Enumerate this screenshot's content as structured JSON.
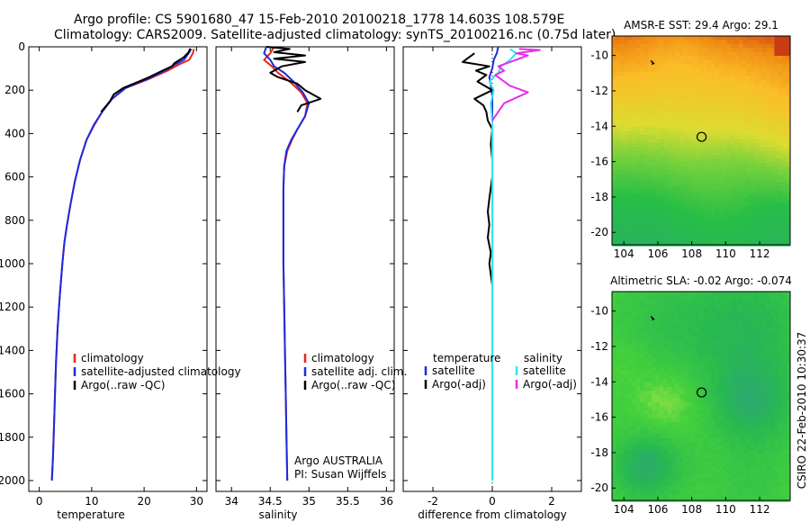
{
  "header": {
    "line1": "Argo profile: CS 5901680_47 15-Feb-2010 20100218_1778 14.603S 108.579E",
    "line2": "Climatology: CARS2009. Satellite-adjusted climatology: synTS_20100216.nc (0.75d later)"
  },
  "side_stamp": "CSIRO 22-Feb-2010 10:30:37",
  "colors": {
    "red": "#e8261c",
    "blue": "#1a2ce0",
    "black": "#000000",
    "cyan": "#2ee6f0",
    "magenta": "#e62ee6"
  },
  "chart_data": [
    {
      "type": "line",
      "name": "temperature-panel",
      "xlabel": "temperature",
      "ylabel": "",
      "xlim": [
        -2,
        32
      ],
      "ylim": [
        2050,
        0
      ],
      "y_reversed": true,
      "xticks": [
        0,
        10,
        20,
        30
      ],
      "yticks": [
        0,
        200,
        400,
        600,
        800,
        1000,
        1200,
        1400,
        1600,
        1800,
        2000
      ],
      "legend": {
        "position": "middle-right",
        "entries": [
          "climatology",
          "satellite-adjusted climatology",
          "Argo(..raw -QC)"
        ]
      },
      "series": [
        {
          "name": "climatology",
          "color": "#e8261c",
          "points": [
            [
              29.5,
              10
            ],
            [
              29.3,
              30
            ],
            [
              28.6,
              60
            ],
            [
              26.8,
              80
            ],
            [
              24.5,
              110
            ],
            [
              20.8,
              150
            ],
            [
              16.5,
              190
            ],
            [
              13.9,
              240
            ],
            [
              12.0,
              300
            ],
            [
              10.5,
              360
            ],
            [
              9.0,
              430
            ],
            [
              7.8,
              520
            ],
            [
              6.8,
              620
            ],
            [
              6.0,
              720
            ],
            [
              5.3,
              820
            ],
            [
              4.8,
              900
            ],
            [
              4.4,
              1000
            ],
            [
              3.9,
              1150
            ],
            [
              3.5,
              1300
            ],
            [
              3.2,
              1450
            ],
            [
              3.0,
              1600
            ],
            [
              2.8,
              1750
            ],
            [
              2.6,
              1900
            ],
            [
              2.4,
              2000
            ]
          ]
        },
        {
          "name": "satellite-adjusted climatology",
          "color": "#1a2ce0",
          "points": [
            [
              29.0,
              10
            ],
            [
              28.5,
              30
            ],
            [
              27.6,
              60
            ],
            [
              26.0,
              80
            ],
            [
              24.0,
              110
            ],
            [
              20.5,
              150
            ],
            [
              16.4,
              190
            ],
            [
              13.9,
              240
            ],
            [
              12.0,
              300
            ],
            [
              10.4,
              360
            ],
            [
              9.0,
              430
            ],
            [
              7.8,
              520
            ],
            [
              6.8,
              620
            ],
            [
              6.0,
              720
            ],
            [
              5.3,
              820
            ],
            [
              4.8,
              900
            ],
            [
              4.4,
              1000
            ],
            [
              3.9,
              1150
            ],
            [
              3.5,
              1300
            ],
            [
              3.2,
              1450
            ],
            [
              3.0,
              1600
            ],
            [
              2.8,
              1750
            ],
            [
              2.6,
              1900
            ],
            [
              2.4,
              2000
            ]
          ]
        },
        {
          "name": "Argo(..raw -QC)",
          "color": "#000000",
          "points": [
            [
              28.8,
              8
            ],
            [
              28.5,
              25
            ],
            [
              27.5,
              50
            ],
            [
              25.8,
              75
            ],
            [
              25.3,
              90
            ],
            [
              23.5,
              110
            ],
            [
              21.0,
              140
            ],
            [
              18.5,
              165
            ],
            [
              16.0,
              190
            ],
            [
              14.2,
              220
            ],
            [
              13.5,
              250
            ],
            [
              12.5,
              280
            ],
            [
              11.8,
              300
            ]
          ]
        }
      ]
    },
    {
      "type": "line",
      "name": "salinity-panel",
      "xlabel": "salinity",
      "ylabel": "",
      "xlim": [
        33.8,
        36.1
      ],
      "ylim": [
        2050,
        0
      ],
      "y_reversed": true,
      "xticks": [
        34,
        34.5,
        35,
        35.5,
        36
      ],
      "xticklabels": [
        "34",
        "34.5",
        "35",
        "35.5",
        "36"
      ],
      "legend": {
        "position": "middle-right",
        "entries": [
          "climatology",
          "satellite adj. clim.",
          "Argo(..raw -QC)"
        ]
      },
      "annotation": {
        "line1": "Argo AUSTRALIA",
        "line2": "PI: Susan Wijffels"
      },
      "series": [
        {
          "name": "climatology",
          "color": "#e8261c",
          "points": [
            [
              34.55,
              0
            ],
            [
              34.5,
              30
            ],
            [
              34.42,
              60
            ],
            [
              34.52,
              90
            ],
            [
              34.6,
              120
            ],
            [
              34.75,
              160
            ],
            [
              34.9,
              210
            ],
            [
              34.98,
              260
            ],
            [
              34.95,
              320
            ],
            [
              34.85,
              380
            ],
            [
              34.78,
              430
            ],
            [
              34.72,
              480
            ],
            [
              34.68,
              550
            ],
            [
              34.67,
              650
            ],
            [
              34.67,
              800
            ],
            [
              34.67,
              1000
            ],
            [
              34.68,
              1200
            ],
            [
              34.69,
              1400
            ],
            [
              34.7,
              1600
            ],
            [
              34.71,
              1800
            ],
            [
              34.72,
              2000
            ]
          ]
        },
        {
          "name": "satellite adj. clim.",
          "color": "#1a2ce0",
          "points": [
            [
              34.45,
              0
            ],
            [
              34.42,
              30
            ],
            [
              34.5,
              60
            ],
            [
              34.55,
              90
            ],
            [
              34.68,
              120
            ],
            [
              34.8,
              160
            ],
            [
              34.92,
              210
            ],
            [
              35.0,
              260
            ],
            [
              34.95,
              320
            ],
            [
              34.85,
              380
            ],
            [
              34.77,
              430
            ],
            [
              34.71,
              480
            ],
            [
              34.68,
              550
            ],
            [
              34.67,
              650
            ],
            [
              34.67,
              800
            ],
            [
              34.67,
              1000
            ],
            [
              34.68,
              1200
            ],
            [
              34.69,
              1400
            ],
            [
              34.7,
              1600
            ],
            [
              34.71,
              1800
            ],
            [
              34.72,
              2000
            ]
          ]
        },
        {
          "name": "Argo(..raw -QC)",
          "color": "#000000",
          "points": [
            [
              34.45,
              0
            ],
            [
              34.75,
              10
            ],
            [
              34.55,
              25
            ],
            [
              34.95,
              40
            ],
            [
              34.55,
              55
            ],
            [
              34.95,
              70
            ],
            [
              34.65,
              90
            ],
            [
              34.5,
              120
            ],
            [
              34.6,
              140
            ],
            [
              34.85,
              170
            ],
            [
              34.95,
              200
            ],
            [
              35.15,
              240
            ],
            [
              34.9,
              270
            ],
            [
              34.85,
              300
            ]
          ]
        }
      ]
    },
    {
      "type": "line",
      "name": "difference-panel",
      "xlabel": "difference from climatology",
      "ylabel": "",
      "xlim": [
        -3.0,
        3.0
      ],
      "ylim": [
        2050,
        0
      ],
      "y_reversed": true,
      "xticks": [
        -2,
        0,
        2
      ],
      "legend": {
        "position": "middle",
        "groups": [
          {
            "title": "temperature",
            "entries": [
              "satellite",
              "Argo(-adj)"
            ]
          },
          {
            "title": "salinity",
            "entries": [
              "satellite",
              "Argo(-adj)"
            ]
          }
        ]
      },
      "series": [
        {
          "name": "temperature satellite",
          "color": "#1a2ce0",
          "points": [
            [
              0.2,
              0
            ],
            [
              0.15,
              30
            ],
            [
              0.05,
              60
            ],
            [
              0.0,
              100
            ],
            [
              -0.1,
              140
            ],
            [
              -0.05,
              180
            ],
            [
              0.0,
              230
            ],
            [
              0.0,
              300
            ],
            [
              0.0,
              500
            ],
            [
              0.0,
              1000
            ],
            [
              0.0,
              1500
            ],
            [
              0.0,
              2000
            ]
          ]
        },
        {
          "name": "temperature Argo(-adj)",
          "color": "#000000",
          "points": [
            [
              -0.6,
              30
            ],
            [
              -1.0,
              70
            ],
            [
              -0.1,
              90
            ],
            [
              -0.55,
              110
            ],
            [
              -0.2,
              130
            ],
            [
              -0.5,
              160
            ],
            [
              0.0,
              200
            ],
            [
              -0.6,
              240
            ],
            [
              -0.3,
              270
            ],
            [
              -0.2,
              300
            ],
            [
              -0.15,
              340
            ],
            [
              0.0,
              380
            ],
            [
              -0.05,
              450
            ],
            [
              0.0,
              520
            ],
            [
              0.0,
              600
            ],
            [
              -0.1,
              700
            ],
            [
              -0.15,
              760
            ],
            [
              -0.1,
              820
            ],
            [
              -0.15,
              880
            ],
            [
              -0.05,
              950
            ],
            [
              -0.1,
              1000
            ],
            [
              0.0,
              1100
            ],
            [
              0.0,
              1500
            ],
            [
              0.0,
              2000
            ]
          ]
        },
        {
          "name": "salinity satellite",
          "color": "#2ee6f0",
          "points": [
            [
              0.6,
              10
            ],
            [
              0.8,
              30
            ],
            [
              0.6,
              60
            ],
            [
              0.3,
              90
            ],
            [
              0.2,
              120
            ],
            [
              -0.1,
              160
            ],
            [
              0.05,
              200
            ],
            [
              -0.05,
              260
            ],
            [
              0.0,
              350
            ],
            [
              0.0,
              500
            ],
            [
              0.0,
              1000
            ],
            [
              0.0,
              1500
            ],
            [
              0.0,
              2000
            ]
          ]
        },
        {
          "name": "salinity Argo(-adj)",
          "color": "#e62ee6",
          "points": [
            [
              0.9,
              10
            ],
            [
              1.6,
              15
            ],
            [
              0.8,
              30
            ],
            [
              1.2,
              40
            ],
            [
              1.0,
              50
            ],
            [
              0.6,
              70
            ],
            [
              0.2,
              90
            ],
            [
              0.4,
              110
            ],
            [
              0.1,
              130
            ],
            [
              0.6,
              180
            ],
            [
              1.2,
              210
            ],
            [
              0.4,
              260
            ],
            [
              0.2,
              300
            ],
            [
              0.0,
              340
            ]
          ]
        }
      ]
    },
    {
      "type": "heatmap",
      "name": "sst-map",
      "title": "AMSR-E SST: 29.4 Argo: 29.1",
      "xlim": [
        103.3,
        113.8
      ],
      "ylim": [
        -20.7,
        -8.9
      ],
      "xticks": [
        104,
        106,
        108,
        110,
        112
      ],
      "yticks": [
        -10,
        -12,
        -14,
        -16,
        -18,
        -20
      ],
      "marker": {
        "lon": 108.58,
        "lat": -14.6
      },
      "track": {
        "lon": 105.7,
        "lat": -10.4
      },
      "field": "sst"
    },
    {
      "type": "heatmap",
      "name": "sla-map",
      "title": "Altimetric SLA: -0.02 Argo: -0.074",
      "xlim": [
        103.3,
        113.8
      ],
      "ylim": [
        -20.7,
        -8.9
      ],
      "xticks": [
        104,
        106,
        108,
        110,
        112
      ],
      "yticks": [
        -10,
        -12,
        -14,
        -16,
        -18,
        -20
      ],
      "marker": {
        "lon": 108.58,
        "lat": -14.6
      },
      "track": {
        "lon": 105.7,
        "lat": -10.4
      },
      "field": "sla"
    }
  ]
}
